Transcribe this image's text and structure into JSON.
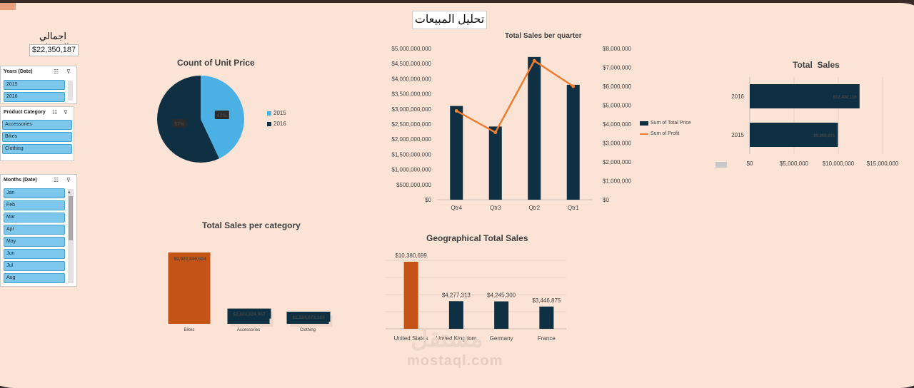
{
  "page": {
    "title": "تحليل المبيعات"
  },
  "kpi": {
    "label": "اجمالي المبيعات",
    "value": "$22,350,187"
  },
  "slicers": {
    "years": {
      "title": "Years (Date)",
      "items": [
        "2015",
        "2016"
      ]
    },
    "category": {
      "title": "Product Category",
      "items": [
        "Accessories",
        "Bikes",
        "Clothing"
      ]
    },
    "months": {
      "title": "Months (Date)",
      "items": [
        "Jan",
        "Feb",
        "Mar",
        "Apr",
        "May",
        "Jun",
        "Jul",
        "Aug"
      ]
    },
    "icons": {
      "multi_select": "multi-select-icon",
      "clear_filter": "clear-filter-icon"
    }
  },
  "colors": {
    "navy": "#0f3042",
    "blue": "#4bb1e4",
    "orange": "#c65316",
    "line": "#ed7d31"
  },
  "chart_data": [
    {
      "id": "pie",
      "type": "pie",
      "title": "Count of Unit Price",
      "labels": [
        "2015",
        "2016"
      ],
      "values": [
        43,
        57
      ],
      "value_labels": [
        "43%",
        "57%"
      ],
      "legend": "right"
    },
    {
      "id": "quarter",
      "type": "bar",
      "title": "Total Sales ber quarter",
      "categories": [
        "Qtr4",
        "Qtr3",
        "Qtr2",
        "Qtr1"
      ],
      "series": [
        {
          "name": "Sum of Total Price",
          "axis": "left",
          "values": [
            3100000000,
            2420000000,
            4720000000,
            3800000000
          ]
        },
        {
          "name": "Sum of Profit",
          "axis": "right",
          "type": "line",
          "values": [
            4700000,
            3560000,
            7350000,
            6000000
          ]
        }
      ],
      "left_ticks": [
        "$0",
        "$500,000,000",
        "$1,000,000,000",
        "$1,500,000,000",
        "$2,000,000,000",
        "$2,500,000,000",
        "$3,000,000,000",
        "$3,500,000,000",
        "$4,000,000,000",
        "$4,500,000,000",
        "$5,000,000,000"
      ],
      "right_ticks": [
        "$0",
        "$1,000,000",
        "$2,000,000",
        "$3,000,000",
        "$4,000,000",
        "$5,000,000",
        "$6,000,000",
        "$7,000,000",
        "$8,000,000"
      ],
      "ylim_left": [
        0,
        5000000000
      ],
      "ylim_right": [
        0,
        8000000
      ],
      "legend": "right"
    },
    {
      "id": "total",
      "type": "bar",
      "orientation": "horizontal",
      "title": "Total  Sales",
      "categories": [
        "2016",
        "2015"
      ],
      "values": [
        12400000,
        9950000
      ],
      "value_labels": [
        "$12,400,116",
        "$9,950,071"
      ],
      "x_ticks": [
        "$0",
        "$5,000,000",
        "$10,000,000",
        "$15,000,000"
      ],
      "xlim": [
        0,
        15000000
      ]
    },
    {
      "id": "category",
      "type": "bar",
      "title": "Total Sales per category",
      "categories": [
        "Bikes",
        "Accessories",
        "Clothing"
      ],
      "values": [
        9922840504,
        2024029967,
        1584973103
      ],
      "value_labels": [
        "$9,922,840,504",
        "$2,024,029,967",
        "$1,584,973,103"
      ]
    },
    {
      "id": "geo",
      "type": "bar",
      "title": "Geographical Total Sales",
      "categories": [
        "United States",
        "United Kingdom",
        "Germany",
        "France"
      ],
      "values": [
        10380699,
        4277313,
        4245300,
        3446875
      ],
      "value_labels": [
        "$10,380,699",
        "$4,277,313",
        "$4,245,300",
        "$3,446,875"
      ]
    }
  ],
  "watermark": {
    "arabic": "مستقل",
    "latin": "mostaql.com"
  }
}
